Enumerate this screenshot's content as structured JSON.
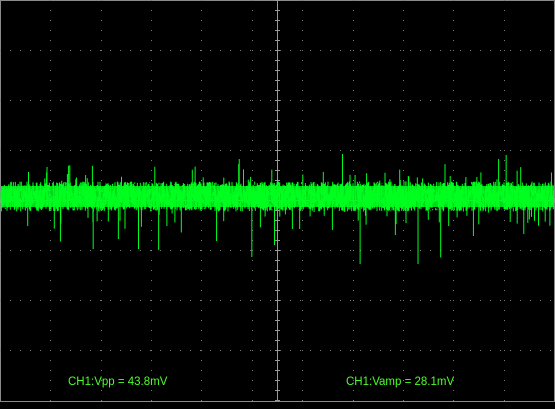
{
  "chart_data": {
    "type": "line",
    "title": "",
    "xlabel": "",
    "ylabel": "",
    "grid": true,
    "divisions": {
      "x": 11,
      "y": 8
    },
    "ylim": [
      -4,
      4
    ],
    "xlim": [
      0,
      11
    ],
    "series": [
      {
        "channel": "CH1",
        "color": "#00ff1e",
        "baseline_div": 0.07,
        "band_halfwidth_div": 0.3,
        "spikes_down_div": [
          [
            0.55,
            -0.52
          ],
          [
            1.2,
            -0.83
          ],
          [
            1.85,
            -0.98
          ],
          [
            2.35,
            -0.78
          ],
          [
            2.75,
            -0.98
          ],
          [
            3.15,
            -1.0
          ],
          [
            3.6,
            -0.65
          ],
          [
            4.3,
            -0.82
          ],
          [
            5.0,
            -1.14
          ],
          [
            5.45,
            -0.9
          ],
          [
            5.95,
            -0.58
          ],
          [
            6.6,
            -0.6
          ],
          [
            7.15,
            -1.28
          ],
          [
            7.85,
            -0.7
          ],
          [
            8.3,
            -1.28
          ],
          [
            8.75,
            -1.15
          ],
          [
            9.4,
            -0.72
          ],
          [
            10.4,
            -0.68
          ]
        ],
        "spikes_up_div": [
          [
            1.7,
            0.5
          ],
          [
            4.75,
            0.82
          ],
          [
            6.8,
            0.92
          ],
          [
            7.05,
            0.5
          ],
          [
            9.25,
            0.46
          ],
          [
            9.9,
            0.82
          ],
          [
            10.05,
            0.9
          ],
          [
            10.95,
            0.55
          ]
        ]
      }
    ]
  },
  "measurements": {
    "vpp": "CH1:Vpp = 43.8mV",
    "vamp": "CH1:Vamp = 28.1mV"
  }
}
